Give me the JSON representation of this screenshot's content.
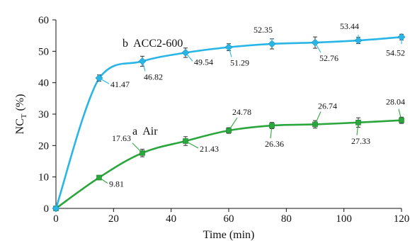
{
  "chart_data": {
    "type": "line",
    "xlabel": "Time (min)",
    "ylabel_main": "NC",
    "ylabel_sub": "T",
    "ylabel_tail": " (%)",
    "xlim": [
      0,
      120
    ],
    "ylim": [
      0,
      60
    ],
    "x_ticks": [
      "0",
      "20",
      "40",
      "60",
      "80",
      "100",
      "120"
    ],
    "y_ticks": [
      "0",
      "10",
      "20",
      "30",
      "40",
      "50",
      "60"
    ],
    "grid": false,
    "series": [
      {
        "name": "a  Air",
        "color": "#2aa63d",
        "x": [
          0,
          15,
          30,
          45,
          60,
          75,
          90,
          105,
          120
        ],
        "y": [
          0,
          9.81,
          17.63,
          21.43,
          24.78,
          26.36,
          26.74,
          27.33,
          28.04
        ],
        "error": [
          0,
          0.7,
          1.2,
          1.4,
          0.9,
          1.0,
          1.2,
          1.5,
          1.0
        ],
        "labels": [
          "",
          "9.81",
          "17.63",
          "21.43",
          "24.78",
          "26.36",
          "26.74",
          "27.33",
          "28.04"
        ]
      },
      {
        "name": "b  ACC2-600",
        "color": "#29b6e6",
        "x": [
          0,
          15,
          30,
          45,
          60,
          75,
          90,
          105,
          120
        ],
        "y": [
          0,
          41.47,
          46.82,
          49.54,
          51.29,
          52.35,
          52.76,
          53.44,
          54.52
        ],
        "error": [
          0,
          1.0,
          1.6,
          1.5,
          1.1,
          1.6,
          1.8,
          1.0,
          0.9
        ],
        "labels": [
          "",
          "41.47",
          "46.82",
          "49.54",
          "51.29",
          "52.35",
          "52.76",
          "53.44",
          "54.52"
        ]
      }
    ]
  }
}
